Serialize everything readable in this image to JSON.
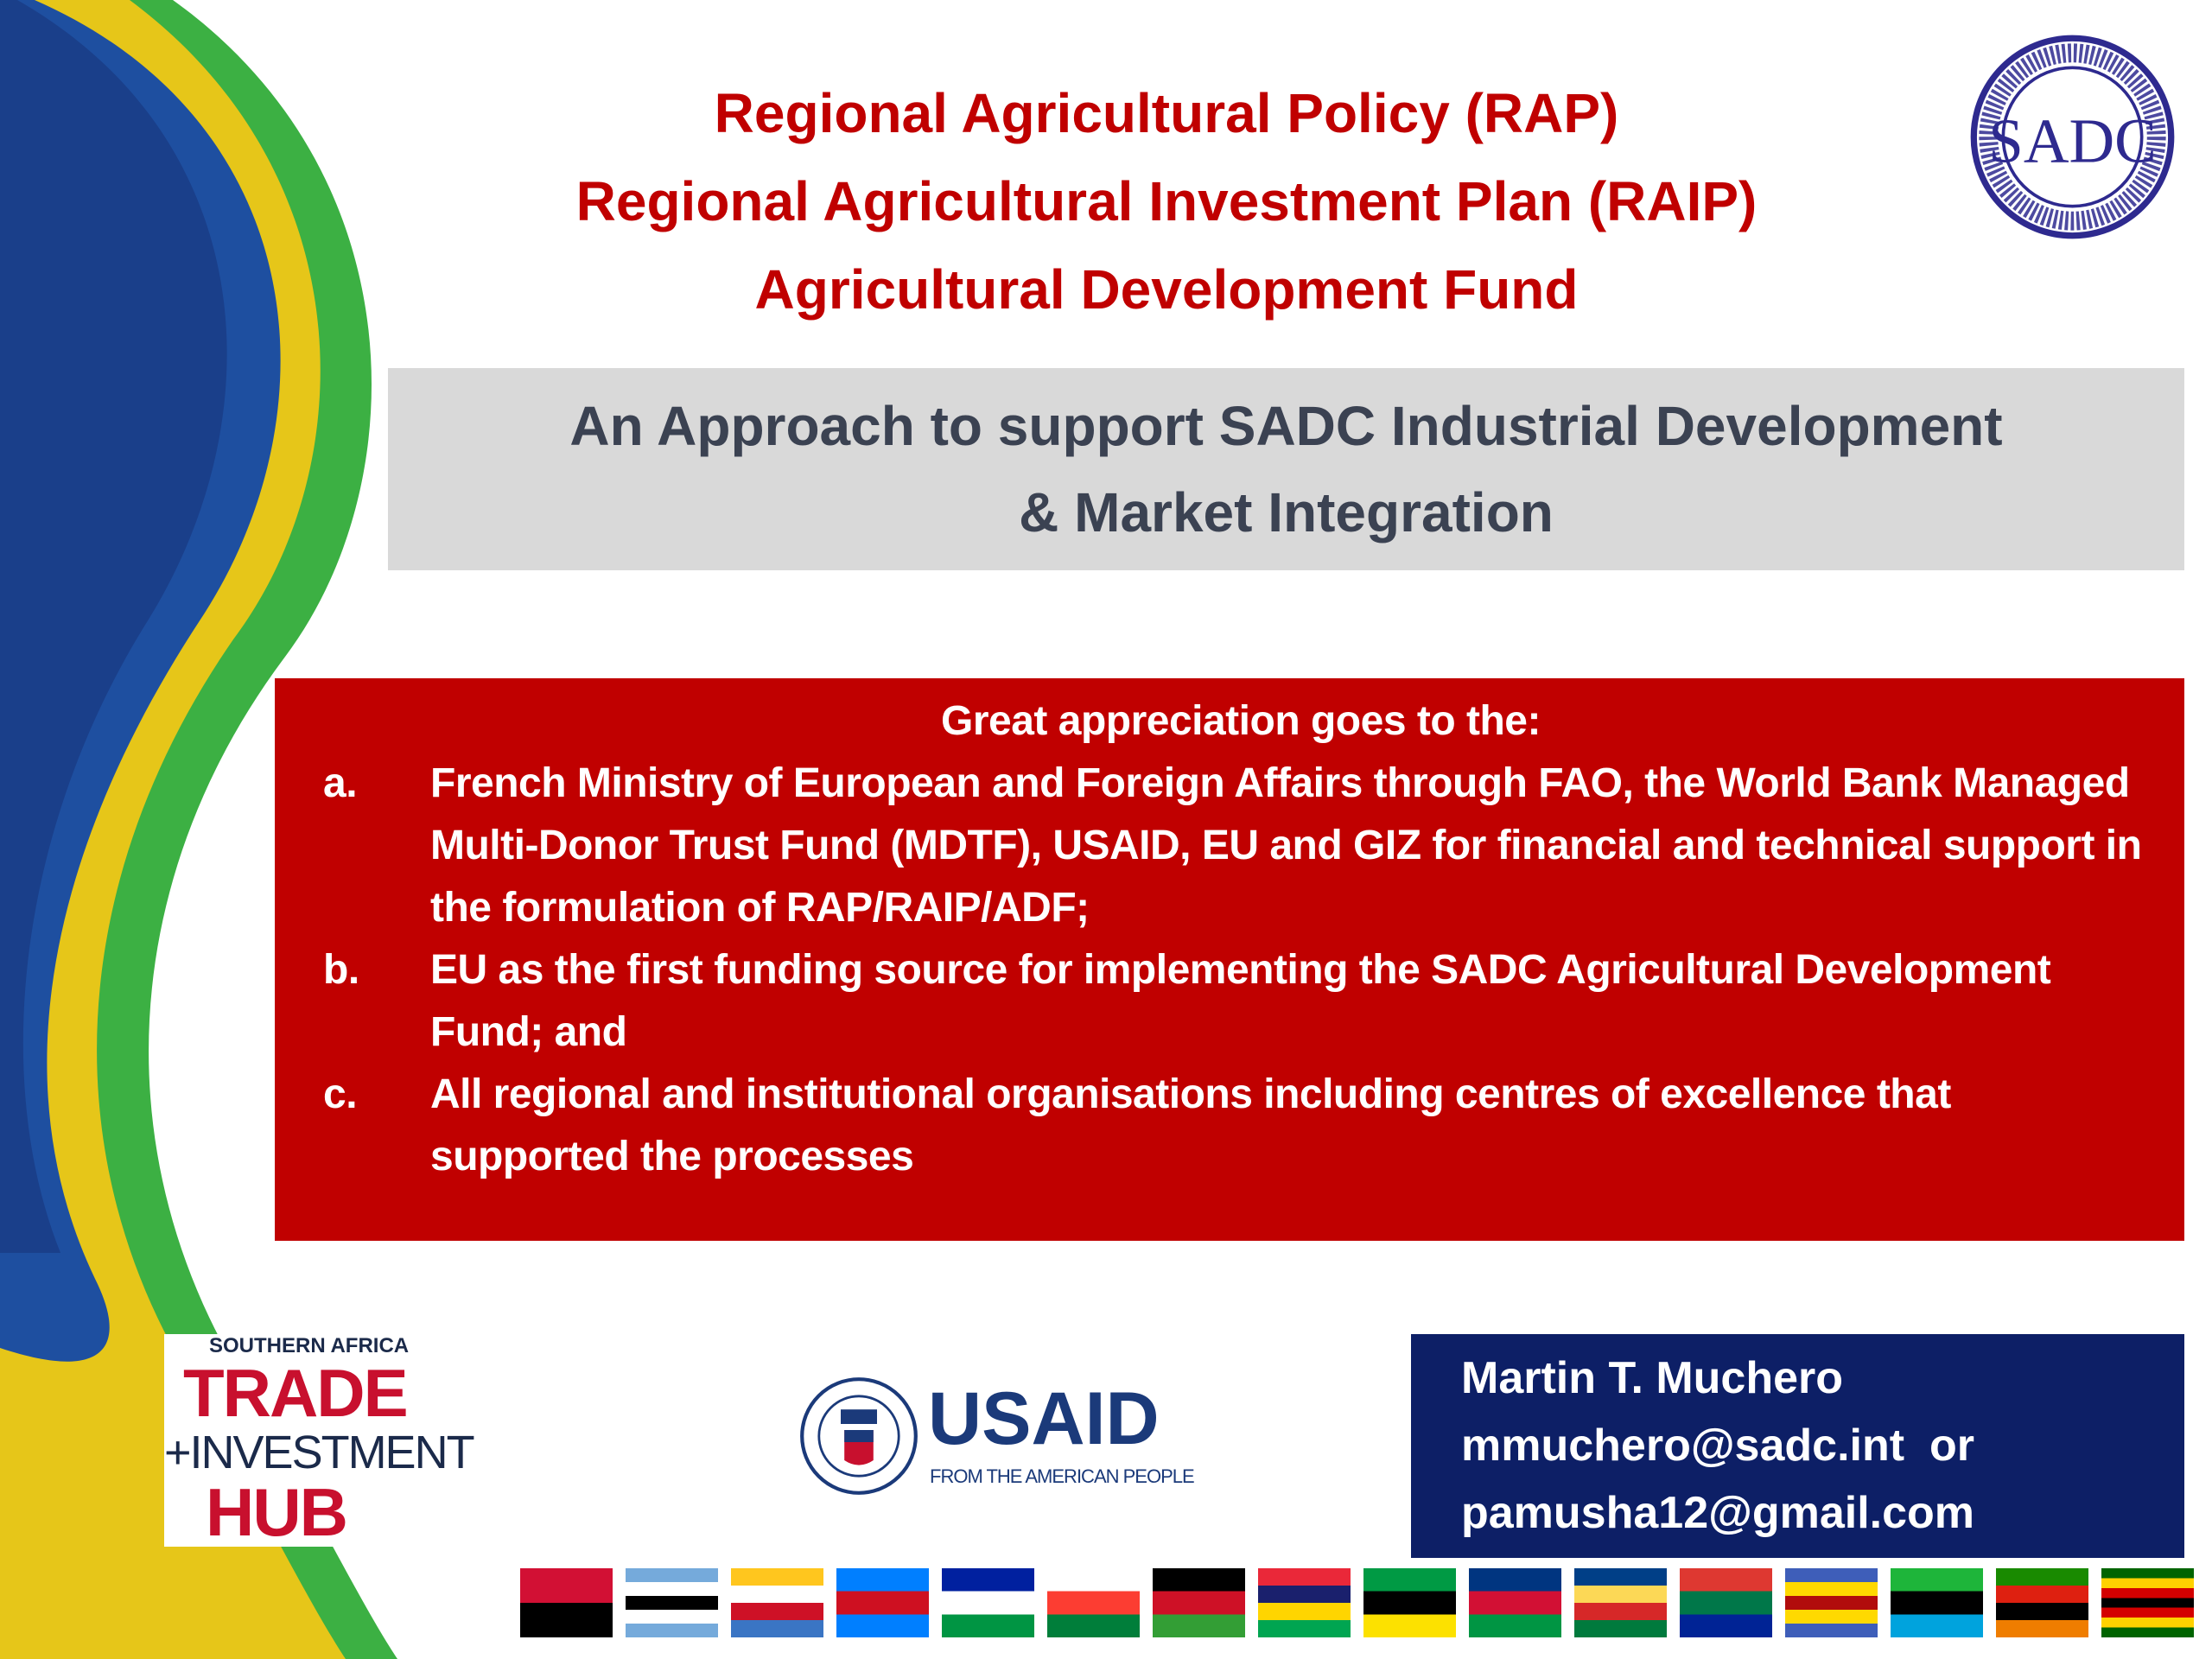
{
  "slide": {
    "title_lines": [
      "Regional Agricultural Policy (RAP)",
      "Regional Agricultural Investment Plan (RAIP)",
      "Agricultural Development Fund"
    ],
    "subtitle_lines": [
      "An Approach to support SADC Industrial Development",
      "& Market Integration"
    ],
    "acknowledgement": {
      "heading": "Great appreciation goes to the:",
      "items": [
        {
          "label": "a.",
          "text": "French Ministry of European and Foreign Affairs through FAO, the World Bank Managed Multi-Donor Trust Fund (MDTF), USAID, EU and GIZ for financial and technical support in the formulation of RAP/RAIP/ADF;"
        },
        {
          "label": "b.",
          "text": "EU as the first funding source for implementing the SADC Agricultural Development Fund; and"
        },
        {
          "label": "c.",
          "text": "All regional and institutional organisations including centres of excellence that supported the processes"
        }
      ]
    },
    "contact": {
      "name": "Martin T. Muchero",
      "email1": "mmuchero@sadc.int  or",
      "email2": "pamusha12@gmail.com"
    },
    "logos": {
      "sadc": {
        "text": "SADC",
        "ring_top": "SOUTHERN AFRICAN DEVELOPMENT COMMUNITY",
        "ring_bottom": "TOWARDS A COMMON FUTURE"
      },
      "trade_hub": {
        "line1": "SOUTHERN AFRICA",
        "line2": "TRADE",
        "line3": "+INVESTMENT",
        "line4": "HUB"
      },
      "usaid": {
        "name": "USAID",
        "tagline": "FROM THE AMERICAN PEOPLE"
      }
    },
    "flags": [
      "Angola",
      "Botswana",
      "Comoros",
      "DR Congo",
      "Lesotho",
      "Madagascar",
      "Malawi",
      "Mauritius",
      "Mozambique",
      "Namibia",
      "Seychelles",
      "South Africa",
      "Eswatini",
      "Tanzania",
      "Zambia",
      "Zimbabwe"
    ],
    "colors": {
      "title_red": "#c00000",
      "box_red": "#c00000",
      "navy": "#0d1f66",
      "grey": "#d9d9d9",
      "sadc_blue": "#2e2a8f"
    }
  }
}
